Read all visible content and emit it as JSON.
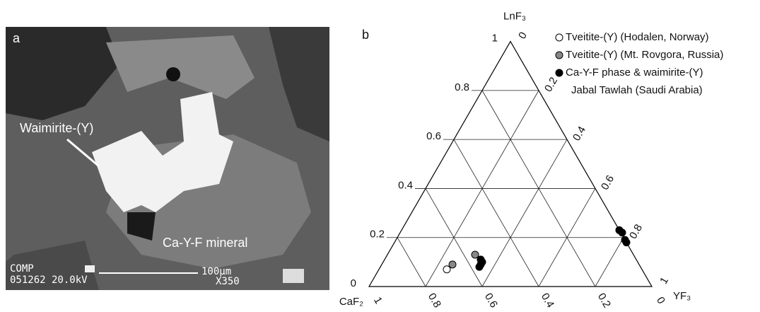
{
  "panel_a": {
    "label": "a",
    "mineral_1": "Waimirite-(Y)",
    "mineral_2": "Ca-Y-F mineral",
    "footer_1": "COMP",
    "footer_2": "051262 20.0kV",
    "scale": "100µm",
    "magnification": "X350"
  },
  "chart_data": {
    "type": "ternary",
    "panel_label": "b",
    "vertices": {
      "top": "LnF₃",
      "left": "CaF₂",
      "right": "YF₃"
    },
    "lnf3_ticks": [
      0,
      0.2,
      0.4,
      0.6,
      0.8,
      1
    ],
    "yf3_ticks": [
      0,
      0.2,
      0.4,
      0.6,
      0.8,
      1
    ],
    "caf2_ticks": [
      0,
      0.2,
      0.4,
      0.6,
      0.8,
      1
    ],
    "series": [
      {
        "name": [
          "Tveitite-(Y) (Hodalen, Norway)"
        ],
        "color": "#ffffff",
        "LnF3": [
          0.07
        ],
        "YF3": [
          0.24
        ]
      },
      {
        "name": [
          "Tveitite-(Y) (Mt. Rovgora, Russia)"
        ],
        "color": "#888888",
        "LnF3": [
          0.09,
          0.13
        ],
        "YF3": [
          0.25,
          0.31
        ]
      },
      {
        "name": [
          "Ca-Y-F phase & waimirite-(Y)",
          "Jabal Tawlah (Saudi Arabia)"
        ],
        "color": "#000000",
        "LnF3": [
          0.11,
          0.1,
          0.08,
          0.09,
          0.23,
          0.22,
          0.19,
          0.18
        ],
        "YF3": [
          0.34,
          0.35,
          0.35,
          0.35,
          0.77,
          0.785,
          0.81,
          0.82
        ]
      }
    ]
  }
}
